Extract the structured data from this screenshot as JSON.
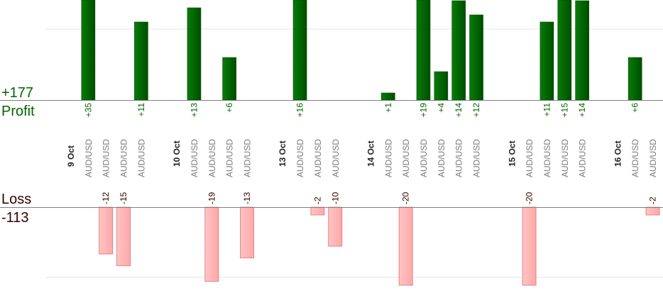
{
  "summary": {
    "profit_total": "+177",
    "profit_label": "Profit",
    "loss_label": "Loss",
    "loss_total": "-113"
  },
  "colors": {
    "profit": "#006400",
    "profit_dark": "#004d00",
    "loss_fill": "#ffb3b3",
    "loss_stroke": "#e07070",
    "loss_text": "#330000",
    "gridline": "#e6e6e6",
    "axis": "#7f7f7f"
  },
  "chart_data": {
    "type": "bar",
    "title": "",
    "slots": [
      {
        "kind": "date",
        "label": "9 Oct"
      },
      {
        "kind": "trade",
        "label": "AUD/USD",
        "value": 35
      },
      {
        "kind": "trade",
        "label": "AUD/USD",
        "value": -12
      },
      {
        "kind": "trade",
        "label": "AUD/USD",
        "value": -15
      },
      {
        "kind": "trade",
        "label": "AUD/USD",
        "value": 11
      },
      {
        "kind": "gap"
      },
      {
        "kind": "date",
        "label": "10 Oct"
      },
      {
        "kind": "trade",
        "label": "AUD/USD",
        "value": 13
      },
      {
        "kind": "trade",
        "label": "AUD/USD",
        "value": -19
      },
      {
        "kind": "trade",
        "label": "AUD/USD",
        "value": 6
      },
      {
        "kind": "trade",
        "label": "AUD/USD",
        "value": -13
      },
      {
        "kind": "gap"
      },
      {
        "kind": "date",
        "label": "13 Oct"
      },
      {
        "kind": "trade",
        "label": "AUD/USD",
        "value": 16
      },
      {
        "kind": "trade",
        "label": "AUD/USD",
        "value": -2
      },
      {
        "kind": "trade",
        "label": "AUD/USD",
        "value": -10
      },
      {
        "kind": "gap"
      },
      {
        "kind": "date",
        "label": "14 Oct"
      },
      {
        "kind": "trade",
        "label": "AUD/USD",
        "value": 1
      },
      {
        "kind": "trade",
        "label": "AUD/USD",
        "value": -20
      },
      {
        "kind": "trade",
        "label": "AUD/USD",
        "value": 19
      },
      {
        "kind": "trade",
        "label": "AUD/USD",
        "value": 4
      },
      {
        "kind": "trade",
        "label": "AUD/USD",
        "value": 14
      },
      {
        "kind": "trade",
        "label": "AUD/USD",
        "value": 12
      },
      {
        "kind": "gap"
      },
      {
        "kind": "date",
        "label": "15 Oct"
      },
      {
        "kind": "trade",
        "label": "AUD/USD",
        "value": -20
      },
      {
        "kind": "trade",
        "label": "AUD/USD",
        "value": 11
      },
      {
        "kind": "trade",
        "label": "AUD/USD",
        "value": 15
      },
      {
        "kind": "trade",
        "label": "AUD/USD",
        "value": 14
      },
      {
        "kind": "gap"
      },
      {
        "kind": "date",
        "label": "16 Oct"
      },
      {
        "kind": "trade",
        "label": "AUD/USD",
        "value": 6
      },
      {
        "kind": "trade",
        "label": "AUD/USD",
        "value": -2
      }
    ],
    "profit_axis": {
      "min": 0,
      "max": 14,
      "gridlines": [
        10
      ]
    },
    "loss_axis": {
      "min": 0,
      "max": -23,
      "gridlines": [
        -18
      ]
    },
    "grid": true,
    "legend": "none"
  }
}
